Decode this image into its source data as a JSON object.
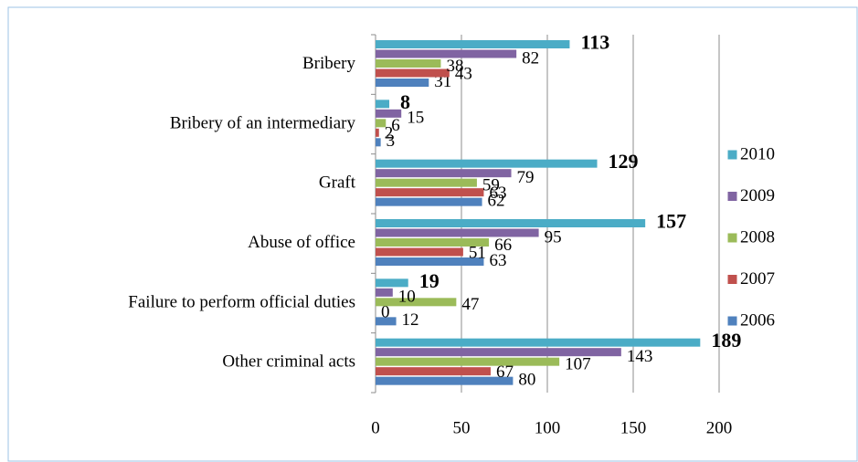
{
  "chart_data": {
    "type": "bar",
    "orientation": "horizontal",
    "categories": [
      "Bribery",
      "Bribery of an intermediary",
      "Graft",
      "Abuse of office",
      "Failure to perform official duties",
      "Other criminal acts"
    ],
    "series": [
      {
        "name": "2006",
        "color": "#4f81bd",
        "values": [
          31,
          3,
          62,
          63,
          12,
          80
        ]
      },
      {
        "name": "2007",
        "color": "#c0504d",
        "values": [
          43,
          2,
          63,
          51,
          0,
          67
        ]
      },
      {
        "name": "2008",
        "color": "#9bbb59",
        "values": [
          38,
          6,
          59,
          66,
          47,
          107
        ]
      },
      {
        "name": "2009",
        "color": "#8064a2",
        "values": [
          82,
          15,
          79,
          95,
          10,
          143
        ]
      },
      {
        "name": "2010",
        "color": "#4bacc6",
        "values": [
          113,
          8,
          129,
          157,
          19,
          189
        ]
      }
    ],
    "xlim": [
      0,
      200
    ],
    "xticks": [
      0,
      50,
      100,
      150,
      200
    ],
    "grid": true,
    "legend": "right"
  }
}
